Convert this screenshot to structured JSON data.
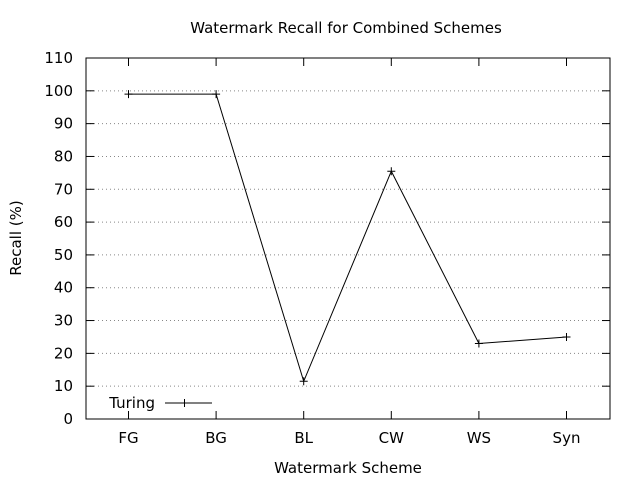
{
  "chart_data": {
    "type": "line",
    "title": "Watermark Recall for Combined Schemes",
    "xlabel": "Watermark Scheme",
    "ylabel": "Recall (%)",
    "categories": [
      "FG",
      "BG",
      "BL",
      "CW",
      "WS",
      "Syn"
    ],
    "ylim": [
      0,
      110
    ],
    "yticks": [
      0,
      10,
      20,
      30,
      40,
      50,
      60,
      70,
      80,
      90,
      100,
      110
    ],
    "grid": true,
    "legend_position": "bottom-left",
    "series": [
      {
        "name": "Turing",
        "values": [
          99,
          99,
          11.5,
          75.5,
          23,
          25
        ],
        "color": "#000000",
        "marker": "plus"
      }
    ]
  }
}
